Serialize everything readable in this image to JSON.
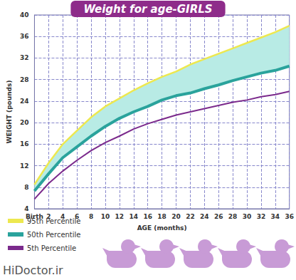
{
  "chart_data": {
    "type": "line",
    "title": "Weight for age-GIRLS",
    "x_label": "AGE (months)",
    "y_label": "WEIGHT (pounds)",
    "x": [
      0,
      2,
      4,
      6,
      8,
      10,
      12,
      14,
      16,
      18,
      20,
      22,
      24,
      26,
      28,
      30,
      32,
      34,
      36
    ],
    "xlim": [
      0,
      36
    ],
    "xticks": [
      {
        "value": 0,
        "label": "Birth"
      },
      2,
      4,
      6,
      8,
      10,
      12,
      14,
      16,
      18,
      20,
      22,
      24,
      26,
      28,
      30,
      32,
      34,
      36
    ],
    "ylim": [
      4,
      40
    ],
    "yticks": [
      4,
      8,
      12,
      16,
      20,
      24,
      28,
      32,
      36,
      40
    ],
    "grid": true,
    "legend": "bottom left",
    "marker": "none",
    "annotations": [
      "HiDoctor.ir"
    ],
    "series": [
      {
        "name": "95th Percentile",
        "color": "#ede84f",
        "values": [
          8.5,
          12.5,
          16,
          18.5,
          21,
          23,
          24.5,
          26,
          27.3,
          28.5,
          29.5,
          30.8,
          31.8,
          32.8,
          33.8,
          34.8,
          35.8,
          36.8,
          38
        ]
      },
      {
        "name": "50th Percentile",
        "color": "#2aa39c",
        "values": [
          7.3,
          10.5,
          13.5,
          15.5,
          17.5,
          19.3,
          20.8,
          22,
          23,
          24.2,
          25,
          25.5,
          26.3,
          27,
          27.8,
          28.5,
          29.2,
          29.7,
          30.5
        ]
      },
      {
        "name": "5th Percentile",
        "color": "#7b2a8c",
        "values": [
          5.8,
          8.7,
          11,
          13,
          14.8,
          16.3,
          17.5,
          18.8,
          19.8,
          20.6,
          21.4,
          22,
          22.6,
          23.2,
          23.8,
          24.2,
          24.8,
          25.2,
          25.8
        ]
      }
    ]
  }
}
